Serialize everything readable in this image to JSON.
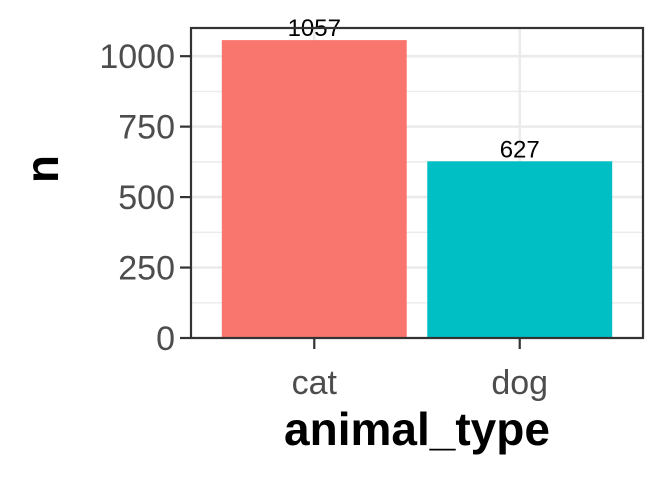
{
  "chart_data": {
    "type": "bar",
    "categories": [
      "cat",
      "dog"
    ],
    "values": [
      1057,
      627
    ],
    "data_labels": [
      "1057",
      "627"
    ],
    "colors": [
      "#F8766D",
      "#00BFC4"
    ],
    "xlabel": "animal_type",
    "ylabel": "n",
    "ylim": [
      0,
      1100
    ],
    "y_ticks": [
      0,
      250,
      500,
      750,
      1000
    ],
    "y_tick_labels": [
      "0",
      "250",
      "500",
      "750",
      "1000"
    ],
    "grid": true,
    "legend": "none",
    "panel_border": true
  }
}
